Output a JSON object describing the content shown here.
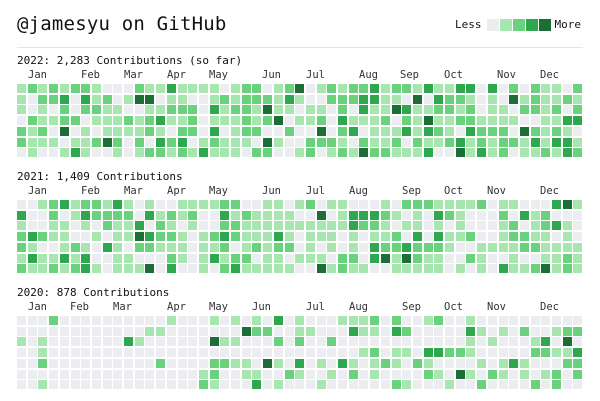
{
  "title": "@jamesyu on GitHub",
  "legend": {
    "less": "Less",
    "more": "More",
    "colors": [
      "#ebedf0",
      "#a8e6af",
      "#6ad17c",
      "#2ea84f",
      "#1d6d36"
    ]
  },
  "years": [
    {
      "title": "2022: 2,283 Contributions (so far)",
      "months": [
        "Jan",
        "Feb",
        "Mar",
        "Apr",
        "May",
        "Jun",
        "Jul",
        "Aug",
        "Sep",
        "Oct",
        "Nov",
        "Dec"
      ]
    },
    {
      "title": "2021: 1,409 Contributions",
      "months": [
        "Jan",
        "Feb",
        "Mar",
        "Apr",
        "May",
        "Jun",
        "Jul",
        "Aug",
        "Sep",
        "Oct",
        "Nov",
        "Dec"
      ]
    },
    {
      "title": "2020: 878 Contributions",
      "months": [
        "Jan",
        "Feb",
        "Mar",
        "Apr",
        "May",
        "Jun",
        "Jul",
        "Aug",
        "Sep",
        "Oct",
        "Nov",
        "Dec"
      ]
    }
  ]
}
